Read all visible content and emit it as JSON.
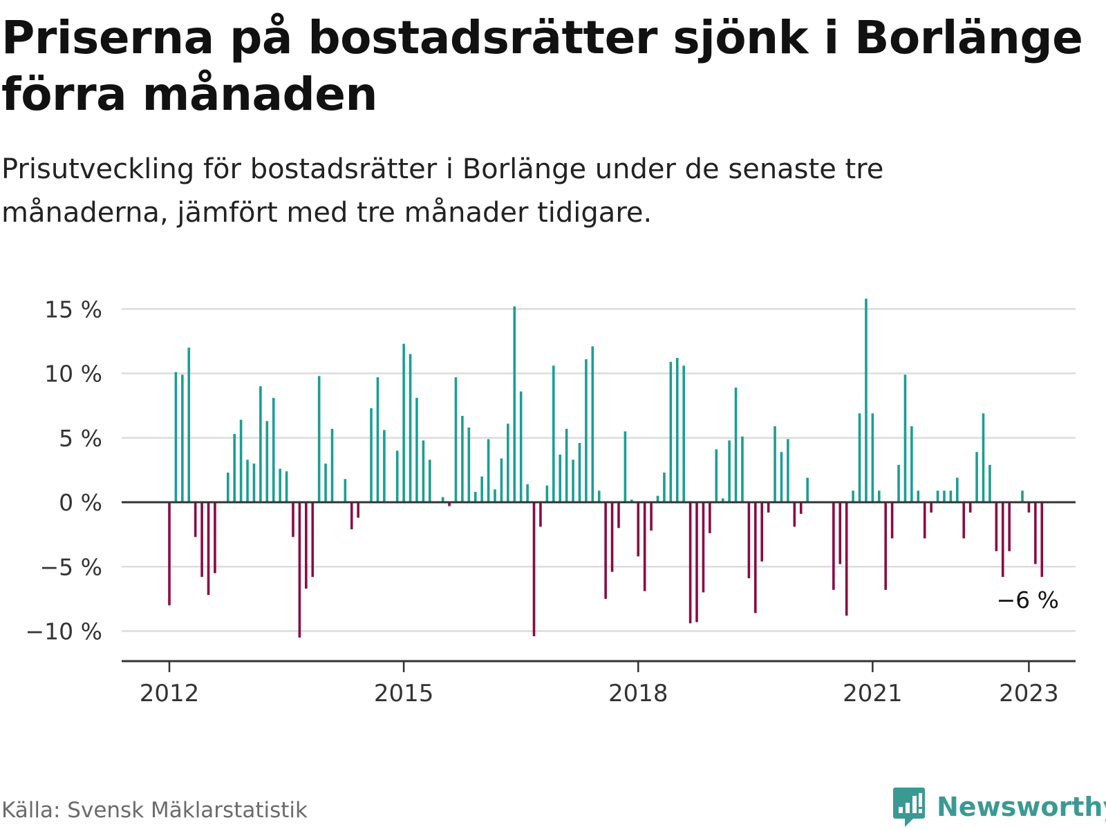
{
  "title": "Priserna på bostadsrätter sjönk i Borlänge förra månaden",
  "subtitle": "Prisutveckling för bostadsrätter i Borlänge under de senaste tre månaderna, jämfört med tre månader tidigare.",
  "source": "Källa: Svensk Mäklarstatistik",
  "brand": "Newsworthy",
  "colors": {
    "positive": "#1b9e94",
    "negative": "#8a0a44",
    "grid": "#dcdcdc",
    "axis": "#333333",
    "brand": "#3a9a93"
  },
  "chart_data": {
    "type": "bar",
    "start": "2012-01",
    "interval": "month",
    "ylim": [
      -12,
      16.5
    ],
    "unit": "%",
    "y_ticks": [
      {
        "value": 15,
        "label": "15 %"
      },
      {
        "value": 10,
        "label": "10 %"
      },
      {
        "value": 5,
        "label": "5 %"
      },
      {
        "value": 0,
        "label": "0 %"
      },
      {
        "value": -5,
        "label": "−5 %"
      },
      {
        "value": -10,
        "label": "−10 %"
      }
    ],
    "x_ticks": [
      {
        "month_index": 0,
        "label": "2012"
      },
      {
        "month_index": 36,
        "label": "2015"
      },
      {
        "month_index": 72,
        "label": "2018"
      },
      {
        "month_index": 108,
        "label": "2021"
      },
      {
        "month_index": 132,
        "label": "2023"
      }
    ],
    "grid": true,
    "last_value_label": "−6 %",
    "values": [
      -8,
      10.1,
      9.9,
      12,
      -2.7,
      -5.8,
      -7.2,
      -5.5,
      0,
      2.3,
      5.3,
      6.4,
      3.3,
      3,
      9,
      6.3,
      8.1,
      2.6,
      2.4,
      -2.7,
      -10.5,
      -6.7,
      -5.8,
      9.8,
      3,
      5.7,
      0,
      1.8,
      -2.1,
      -1.2,
      0,
      7.3,
      9.7,
      5.6,
      0,
      4,
      12.3,
      11.5,
      8.1,
      4.8,
      3.3,
      0,
      0.4,
      -0.3,
      9.7,
      6.7,
      5.8,
      0.8,
      2,
      4.9,
      1,
      3.4,
      6.1,
      15.2,
      8.6,
      1.4,
      -10.4,
      -1.9,
      1.3,
      10.6,
      3.7,
      5.7,
      3.3,
      4.6,
      11.1,
      12.1,
      0.9,
      -7.5,
      -5.4,
      -2,
      5.5,
      0.2,
      -4.2,
      -6.9,
      -2.2,
      0.5,
      2.3,
      10.9,
      11.2,
      10.6,
      -9.4,
      -9.3,
      -7,
      -2.4,
      4.1,
      0.3,
      4.8,
      8.9,
      5.1,
      -5.9,
      -8.6,
      -4.6,
      -0.8,
      5.9,
      3.9,
      4.9,
      -1.9,
      -0.9,
      1.9,
      0,
      0,
      0,
      -6.8,
      -4.8,
      -8.8,
      0.9,
      6.9,
      15.8,
      6.9,
      0.9,
      -6.8,
      -2.8,
      2.9,
      9.9,
      5.9,
      0.9,
      -2.8,
      -0.8,
      0.9,
      0.9,
      0.9,
      1.9,
      -2.8,
      -0.8,
      3.9,
      6.9,
      2.9,
      -3.8,
      -5.8,
      -3.8,
      0,
      0.9,
      -0.8,
      -4.8,
      -5.8
    ]
  }
}
